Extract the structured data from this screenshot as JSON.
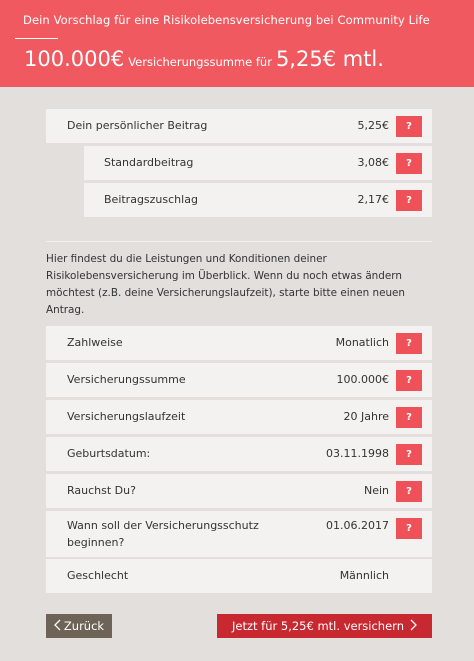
{
  "header": {
    "subtitle": "Dein Vorschlag für eine Risikolebensversicherung bei Community Life",
    "sum": "100.000€",
    "sum_label": "Versicherungssumme für",
    "price": "5,25€ mtl."
  },
  "premium": [
    {
      "label": "Dein persönlicher Beitrag",
      "value": "5,25€",
      "help": "?"
    },
    {
      "label": "Standardbeitrag",
      "value": "3,08€",
      "help": "?"
    },
    {
      "label": "Beitragszuschlag",
      "value": "2,17€",
      "help": "?"
    }
  ],
  "intro": "Hier findest du die Leistungen und Konditionen deiner Risikolebensversicherung im Überblick. Wenn du noch etwas ändern möchtest (z.B. deine Versicherungslaufzeit), starte bitte einen neuen Antrag.",
  "details": [
    {
      "label": "Zahlweise",
      "value": "Monatlich",
      "help": "?"
    },
    {
      "label": "Versicherungssumme",
      "value": "100.000€",
      "help": "?"
    },
    {
      "label": "Versicherungslaufzeit",
      "value": "20 Jahre",
      "help": "?"
    },
    {
      "label": "Geburtsdatum:",
      "value": "03.11.1998",
      "help": "?"
    },
    {
      "label": "Rauchst Du?",
      "value": "Nein",
      "help": "?"
    },
    {
      "label": "Wann soll der Versicherungsschutz beginnen?",
      "value": "01.06.2017",
      "help": "?"
    },
    {
      "label": "Geschlecht",
      "value": "Männlich"
    }
  ],
  "buttons": {
    "back": "Zurück",
    "back_icon": "chevron-left-icon",
    "submit": "Jetzt für 5,25€ mtl. versichern",
    "submit_icon": "chevron-right-icon"
  }
}
